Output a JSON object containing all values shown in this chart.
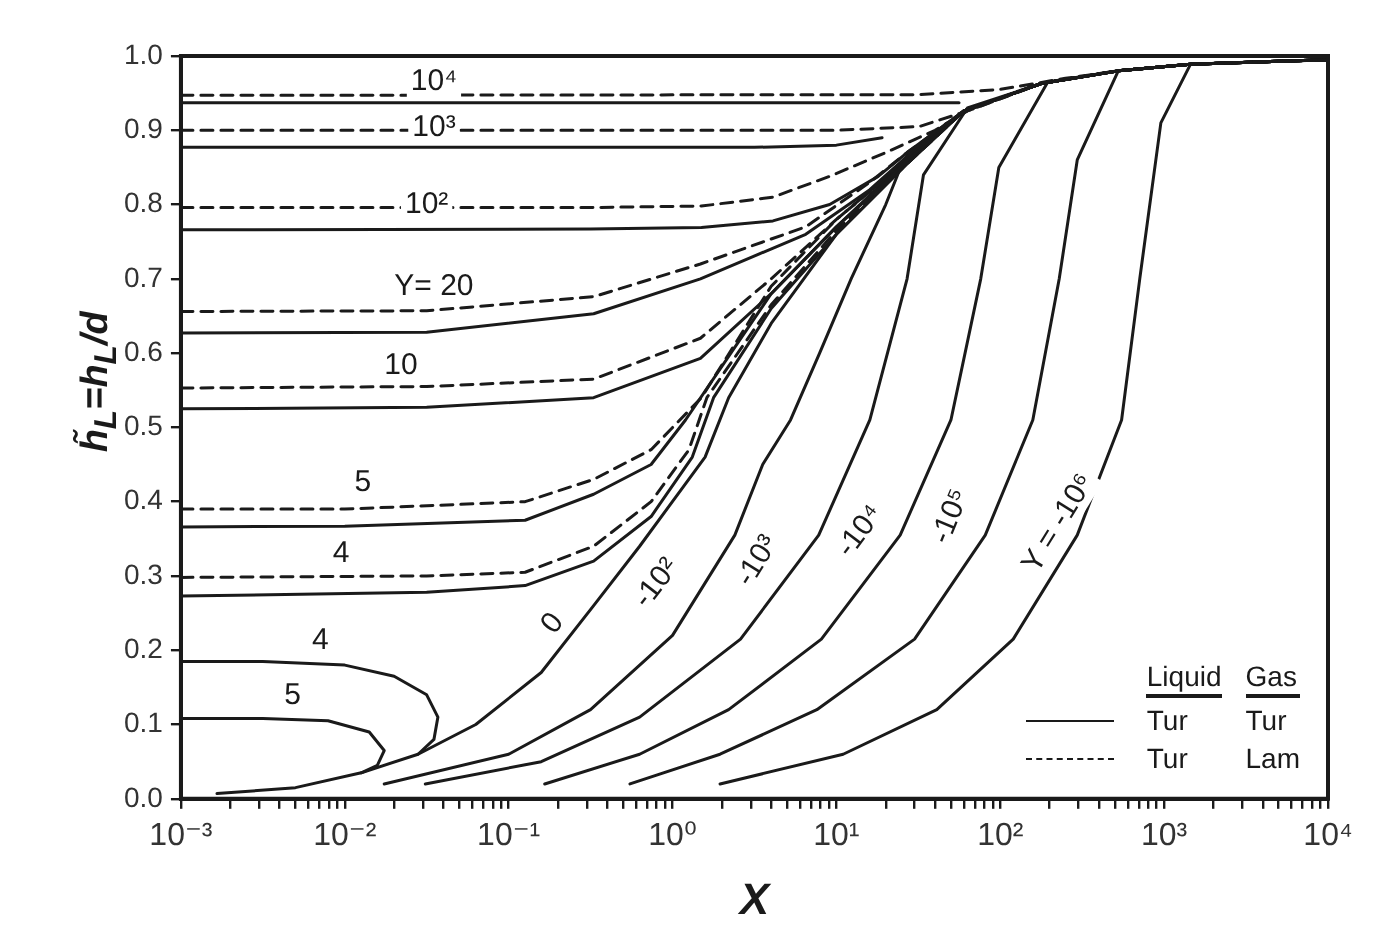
{
  "chart_data": {
    "type": "line",
    "xlabel": "X",
    "ylabel": "h̃$_{L}$=h$_{L}$/d",
    "log": "x",
    "grid": false,
    "marker": "none",
    "xlim": [
      0.001,
      10000
    ],
    "ylim": [
      0,
      1
    ],
    "xticks": [
      {
        "value": 0.001,
        "label": "10⁻³"
      },
      {
        "value": 0.002,
        "label": null
      },
      {
        "value": 0.003,
        "label": null
      },
      {
        "value": 0.004,
        "label": null
      },
      {
        "value": 0.005,
        "label": null
      },
      {
        "value": 0.006,
        "label": null
      },
      {
        "value": 0.007,
        "label": null
      },
      {
        "value": 0.008,
        "label": null
      },
      {
        "value": 0.009,
        "label": null
      },
      {
        "value": 0.01,
        "label": "10⁻²"
      },
      {
        "value": 0.02,
        "label": null
      },
      {
        "value": 0.03,
        "label": null
      },
      {
        "value": 0.04,
        "label": null
      },
      {
        "value": 0.05,
        "label": null
      },
      {
        "value": 0.06,
        "label": null
      },
      {
        "value": 0.07,
        "label": null
      },
      {
        "value": 0.08,
        "label": null
      },
      {
        "value": 0.09,
        "label": null
      },
      {
        "value": 0.1,
        "label": "10⁻¹"
      },
      {
        "value": 0.2,
        "label": null
      },
      {
        "value": 0.3,
        "label": null
      },
      {
        "value": 0.4,
        "label": null
      },
      {
        "value": 0.5,
        "label": null
      },
      {
        "value": 0.6,
        "label": null
      },
      {
        "value": 0.7,
        "label": null
      },
      {
        "value": 0.8,
        "label": null
      },
      {
        "value": 0.9,
        "label": null
      },
      {
        "value": 1,
        "label": "10⁰"
      },
      {
        "value": 2,
        "label": null
      },
      {
        "value": 3,
        "label": null
      },
      {
        "value": 4,
        "label": null
      },
      {
        "value": 5,
        "label": null
      },
      {
        "value": 6,
        "label": null
      },
      {
        "value": 7,
        "label": null
      },
      {
        "value": 8,
        "label": null
      },
      {
        "value": 9,
        "label": null
      },
      {
        "value": 10,
        "label": "10¹"
      },
      {
        "value": 20,
        "label": null
      },
      {
        "value": 30,
        "label": null
      },
      {
        "value": 40,
        "label": null
      },
      {
        "value": 50,
        "label": null
      },
      {
        "value": 60,
        "label": null
      },
      {
        "value": 70,
        "label": null
      },
      {
        "value": 80,
        "label": null
      },
      {
        "value": 90,
        "label": null
      },
      {
        "value": 100,
        "label": "10²"
      },
      {
        "value": 200,
        "label": null
      },
      {
        "value": 300,
        "label": null
      },
      {
        "value": 400,
        "label": null
      },
      {
        "value": 500,
        "label": null
      },
      {
        "value": 600,
        "label": null
      },
      {
        "value": 700,
        "label": null
      },
      {
        "value": 800,
        "label": null
      },
      {
        "value": 900,
        "label": null
      },
      {
        "value": 1000,
        "label": "10³"
      },
      {
        "value": 2000,
        "label": null
      },
      {
        "value": 3000,
        "label": null
      },
      {
        "value": 4000,
        "label": null
      },
      {
        "value": 5000,
        "label": null
      },
      {
        "value": 6000,
        "label": null
      },
      {
        "value": 7000,
        "label": null
      },
      {
        "value": 8000,
        "label": null
      },
      {
        "value": 9000,
        "label": null
      },
      {
        "value": 10000,
        "label": "10⁴"
      }
    ],
    "yticks": [
      {
        "value": 0,
        "label": "0.0"
      },
      {
        "value": 0.1,
        "label": "0.1"
      },
      {
        "value": 0.2,
        "label": "0.2"
      },
      {
        "value": 0.3,
        "label": "0.3"
      },
      {
        "value": 0.4,
        "label": "0.4"
      },
      {
        "value": 0.5,
        "label": "0.5"
      },
      {
        "value": 0.6,
        "label": "0.6"
      },
      {
        "value": 0.7,
        "label": "0.7"
      },
      {
        "value": 0.8,
        "label": "0.8"
      },
      {
        "value": 0.9,
        "label": "0.9"
      },
      {
        "value": 1,
        "label": "1.0"
      }
    ],
    "series": [
      {
        "color": "#1a1a1a",
        "line_style": "solid",
        "x": [
          0.001,
          1,
          56
        ],
        "values": [
          0.937,
          0.937,
          0.937
        ]
      },
      {
        "color": "#1a1a1a",
        "line_style": "dashed",
        "x": [
          0.001,
          32,
          100,
          250,
          525,
          1450,
          10000
        ],
        "values": [
          0.947,
          0.948,
          0.955,
          0.97,
          0.98,
          0.989,
          0.995
        ]
      },
      {
        "color": "#1a1a1a",
        "line_style": "solid",
        "x": [
          0.001,
          3.16,
          10,
          19
        ],
        "values": [
          0.877,
          0.877,
          0.88,
          0.89
        ]
      },
      {
        "color": "#1a1a1a",
        "line_style": "dashed",
        "x": [
          0.001,
          10,
          32,
          63,
          178,
          525,
          1450,
          10000
        ],
        "values": [
          0.9,
          0.9,
          0.905,
          0.926,
          0.963,
          0.98,
          0.989,
          0.995
        ]
      },
      {
        "color": "#1a1a1a",
        "line_style": "solid",
        "x": [
          0.001,
          0.316,
          1.5,
          4.1,
          9.1,
          18,
          27,
          60,
          178,
          525,
          1450,
          10000
        ],
        "values": [
          0.766,
          0.767,
          0.769,
          0.778,
          0.8,
          0.838,
          0.87,
          0.926,
          0.963,
          0.98,
          0.989,
          0.995
        ]
      },
      {
        "color": "#1a1a1a",
        "line_style": "dashed",
        "x": [
          0.001,
          0.316,
          1.5,
          4.1,
          9.1,
          20,
          40,
          63,
          178,
          525,
          1450,
          10000
        ],
        "values": [
          0.796,
          0.796,
          0.798,
          0.81,
          0.838,
          0.87,
          0.9,
          0.926,
          0.963,
          0.98,
          0.989,
          0.995
        ]
      },
      {
        "color": "#1a1a1a",
        "line_style": "solid",
        "x": [
          0.001,
          0.0316,
          0.33,
          1.48,
          6.5,
          16,
          27,
          60,
          178,
          525,
          1450,
          10000
        ],
        "values": [
          0.627,
          0.628,
          0.653,
          0.7,
          0.76,
          0.82,
          0.865,
          0.926,
          0.963,
          0.98,
          0.989,
          0.995
        ]
      },
      {
        "color": "#1a1a1a",
        "line_style": "dashed",
        "x": [
          0.001,
          0.0316,
          0.33,
          1.48,
          6.5,
          16,
          27,
          60,
          178,
          525,
          1450,
          10000
        ],
        "values": [
          0.656,
          0.657,
          0.676,
          0.72,
          0.77,
          0.83,
          0.87,
          0.926,
          0.963,
          0.98,
          0.989,
          0.995
        ]
      },
      {
        "color": "#1a1a1a",
        "line_style": "solid",
        "x": [
          0.001,
          0.0316,
          0.33,
          1.48,
          4,
          10,
          20,
          27,
          60,
          178,
          525,
          1450,
          10000
        ],
        "values": [
          0.525,
          0.527,
          0.54,
          0.593,
          0.68,
          0.77,
          0.83,
          0.86,
          0.926,
          0.963,
          0.98,
          0.989,
          0.995
        ]
      },
      {
        "color": "#1a1a1a",
        "line_style": "dashed",
        "x": [
          0.001,
          0.0316,
          0.33,
          1.48,
          4,
          10,
          20,
          27,
          60,
          178,
          525,
          1450,
          10000
        ],
        "values": [
          0.553,
          0.555,
          0.565,
          0.62,
          0.7,
          0.78,
          0.835,
          0.865,
          0.926,
          0.963,
          0.98,
          0.989,
          0.995
        ]
      },
      {
        "color": "#1a1a1a",
        "line_style": "solid",
        "x": [
          0.001,
          0.01,
          0.126,
          0.33,
          0.74,
          1.2,
          4,
          10,
          27,
          60,
          178,
          525,
          1450,
          10000
        ],
        "values": [
          0.366,
          0.367,
          0.375,
          0.41,
          0.45,
          0.51,
          0.68,
          0.77,
          0.86,
          0.926,
          0.963,
          0.98,
          0.989,
          0.995
        ]
      },
      {
        "color": "#1a1a1a",
        "line_style": "dashed",
        "x": [
          0.001,
          0.01,
          0.126,
          0.33,
          0.74,
          1.5,
          4,
          10,
          27,
          60,
          178,
          525,
          1450,
          10000
        ],
        "values": [
          0.39,
          0.39,
          0.4,
          0.43,
          0.47,
          0.54,
          0.69,
          0.78,
          0.86,
          0.926,
          0.963,
          0.98,
          0.989,
          0.995
        ]
      },
      {
        "color": "#1a1a1a",
        "line_style": "solid",
        "x": [
          0.001,
          0.0316,
          0.126,
          0.33,
          0.74,
          1.32,
          1.78,
          4,
          10,
          27,
          60,
          178,
          525,
          1450,
          10000
        ],
        "values": [
          0.273,
          0.278,
          0.287,
          0.32,
          0.38,
          0.46,
          0.54,
          0.66,
          0.76,
          0.855,
          0.926,
          0.963,
          0.98,
          0.989,
          0.995
        ]
      },
      {
        "color": "#1a1a1a",
        "line_style": "dashed",
        "x": [
          0.001,
          0.0316,
          0.126,
          0.33,
          0.74,
          1.26,
          1.62,
          4,
          10,
          27,
          60,
          178,
          525,
          1450,
          10000
        ],
        "values": [
          0.298,
          0.3,
          0.305,
          0.34,
          0.4,
          0.47,
          0.54,
          0.665,
          0.765,
          0.855,
          0.926,
          0.963,
          0.98,
          0.989,
          0.995
        ]
      },
      {
        "color": "#1a1a1a",
        "line_style": "solid",
        "x": [
          0.001,
          0.00316,
          0.01,
          0.02,
          0.0316,
          0.037,
          0.035,
          0.028
        ],
        "values": [
          0.185,
          0.185,
          0.18,
          0.165,
          0.14,
          0.11,
          0.08,
          0.06
        ]
      },
      {
        "color": "#1a1a1a",
        "line_style": "solid",
        "x": [
          0.001,
          0.00316,
          0.0079,
          0.0141,
          0.0174,
          0.0158,
          0.0126
        ],
        "values": [
          0.108,
          0.108,
          0.105,
          0.09,
          0.065,
          0.045,
          0.035
        ]
      },
      {
        "color": "#1a1a1a",
        "line_style": "solid",
        "x": [
          0.00166,
          0.005,
          0.0126,
          0.028,
          0.063,
          0.158,
          0.33,
          0.63,
          1.58,
          2.2,
          4,
          10,
          27,
          60,
          178,
          525,
          1450,
          10000
        ],
        "values": [
          0.007,
          0.015,
          0.035,
          0.06,
          0.1,
          0.17,
          0.26,
          0.34,
          0.46,
          0.54,
          0.64,
          0.76,
          0.855,
          0.926,
          0.963,
          0.98,
          0.989,
          0.995
        ]
      },
      {
        "color": "#1a1a1a",
        "line_style": "solid",
        "x": [
          0.0174,
          0.1,
          0.316,
          1,
          2.4,
          3.55,
          5.25,
          7.9,
          12.3,
          20,
          25.7,
          60,
          178,
          525,
          1450,
          10000
        ],
        "values": [
          0.02,
          0.06,
          0.12,
          0.22,
          0.355,
          0.45,
          0.51,
          0.6,
          0.7,
          0.8,
          0.86,
          0.926,
          0.963,
          0.98,
          0.989,
          0.995
        ]
      },
      {
        "color": "#1a1a1a",
        "line_style": "solid",
        "x": [
          0.031,
          0.158,
          0.63,
          2.6,
          7.8,
          16,
          27,
          34,
          63,
          178,
          525,
          1450,
          10000
        ],
        "values": [
          0.02,
          0.05,
          0.11,
          0.215,
          0.355,
          0.51,
          0.7,
          0.84,
          0.93,
          0.963,
          0.98,
          0.989,
          0.995
        ]
      },
      {
        "color": "#1a1a1a",
        "line_style": "solid",
        "x": [
          0.166,
          0.63,
          2.2,
          8.1,
          24.5,
          50,
          76,
          98,
          195,
          525,
          1450,
          10000
        ],
        "values": [
          0.02,
          0.06,
          0.12,
          0.215,
          0.355,
          0.51,
          0.7,
          0.85,
          0.965,
          0.98,
          0.989,
          0.995
        ]
      },
      {
        "color": "#1a1a1a",
        "line_style": "solid",
        "x": [
          0.55,
          1.95,
          7.6,
          30,
          81,
          158,
          229,
          295,
          525,
          1450,
          10000
        ],
        "values": [
          0.02,
          0.06,
          0.12,
          0.215,
          0.355,
          0.51,
          0.7,
          0.86,
          0.98,
          0.989,
          0.995
        ]
      },
      {
        "color": "#1a1a1a",
        "line_style": "solid",
        "x": [
          1.95,
          11,
          41,
          120,
          295,
          550,
          710,
          955,
          1450,
          10000
        ],
        "values": [
          0.02,
          0.06,
          0.12,
          0.215,
          0.355,
          0.51,
          0.7,
          0.91,
          0.989,
          0.995
        ]
      }
    ],
    "annotations": [
      {
        "text": "10⁴",
        "x": 0.035,
        "y": 0.965
      },
      {
        "text": "10³",
        "x": 0.035,
        "y": 0.903
      },
      {
        "text": "10²",
        "x": 0.0316,
        "y": 0.8
      },
      {
        "text": "Y= 20",
        "x": 0.035,
        "y": 0.69
      },
      {
        "text": "10",
        "x": 0.022,
        "y": 0.583
      },
      {
        "text": "5",
        "x": 0.0129,
        "y": 0.426
      },
      {
        "text": "4",
        "x": 0.0095,
        "y": 0.33
      },
      {
        "text": "4",
        "x": 0.0071,
        "y": 0.213
      },
      {
        "text": "5",
        "x": 0.0048,
        "y": 0.139
      },
      {
        "text": "0",
        "x": 0.186,
        "y": 0.236
      },
      {
        "text": "-10²",
        "x": 0.8,
        "y": 0.29
      },
      {
        "text": "-10³",
        "x": 3.3,
        "y": 0.32
      },
      {
        "text": "-10⁴",
        "x": 14,
        "y": 0.36
      },
      {
        "text": "-10⁵",
        "x": 50,
        "y": 0.38
      },
      {
        "text": "Y = -10⁶",
        "x": 295,
        "y": 0.355
      },
      "Liquid",
      "Gas",
      "Tur",
      "Tur",
      "Tur",
      "Lam"
    ]
  }
}
